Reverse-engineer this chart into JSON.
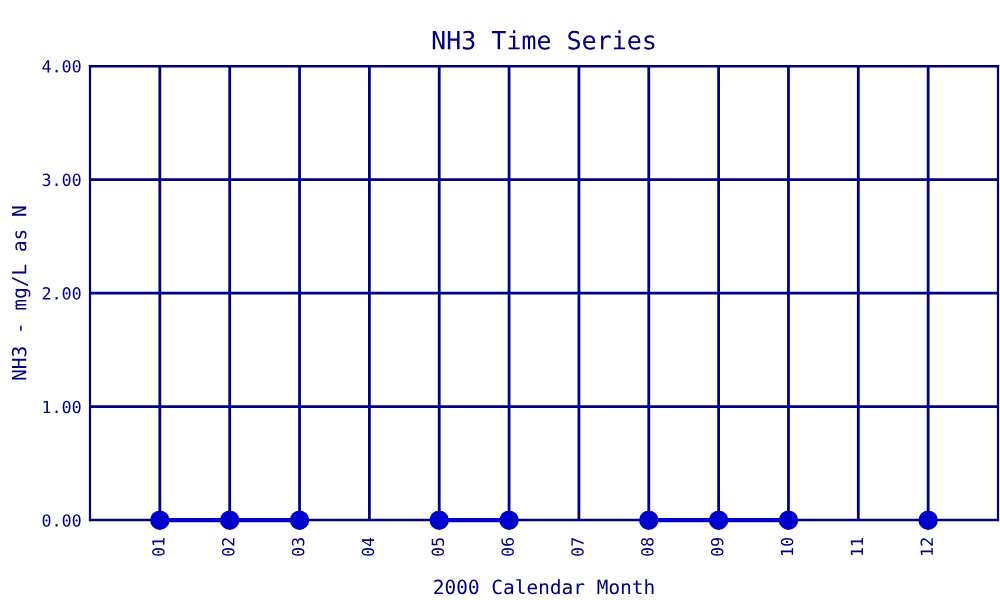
{
  "chart_data": {
    "type": "line",
    "title": "NH3 Time Series",
    "xlabel": "2000 Calendar Month",
    "ylabel": "NH3 - mg/L as N",
    "categories": [
      "01",
      "02",
      "03",
      "04",
      "05",
      "06",
      "07",
      "08",
      "09",
      "10",
      "11",
      "12"
    ],
    "series": [
      {
        "color": "#0000cc",
        "values": [
          0,
          0,
          0,
          null,
          0,
          0,
          null,
          0,
          0,
          0,
          null,
          0
        ]
      }
    ],
    "ylim": [
      0,
      4
    ],
    "yticks": [
      {
        "value": 0,
        "label": "0.00"
      },
      {
        "value": 1,
        "label": "1.00"
      },
      {
        "value": 2,
        "label": "2.00"
      },
      {
        "value": 3,
        "label": "3.00"
      },
      {
        "value": 4,
        "label": "4.00"
      }
    ],
    "grid": true,
    "marker": "circle",
    "line_style": "solid"
  }
}
